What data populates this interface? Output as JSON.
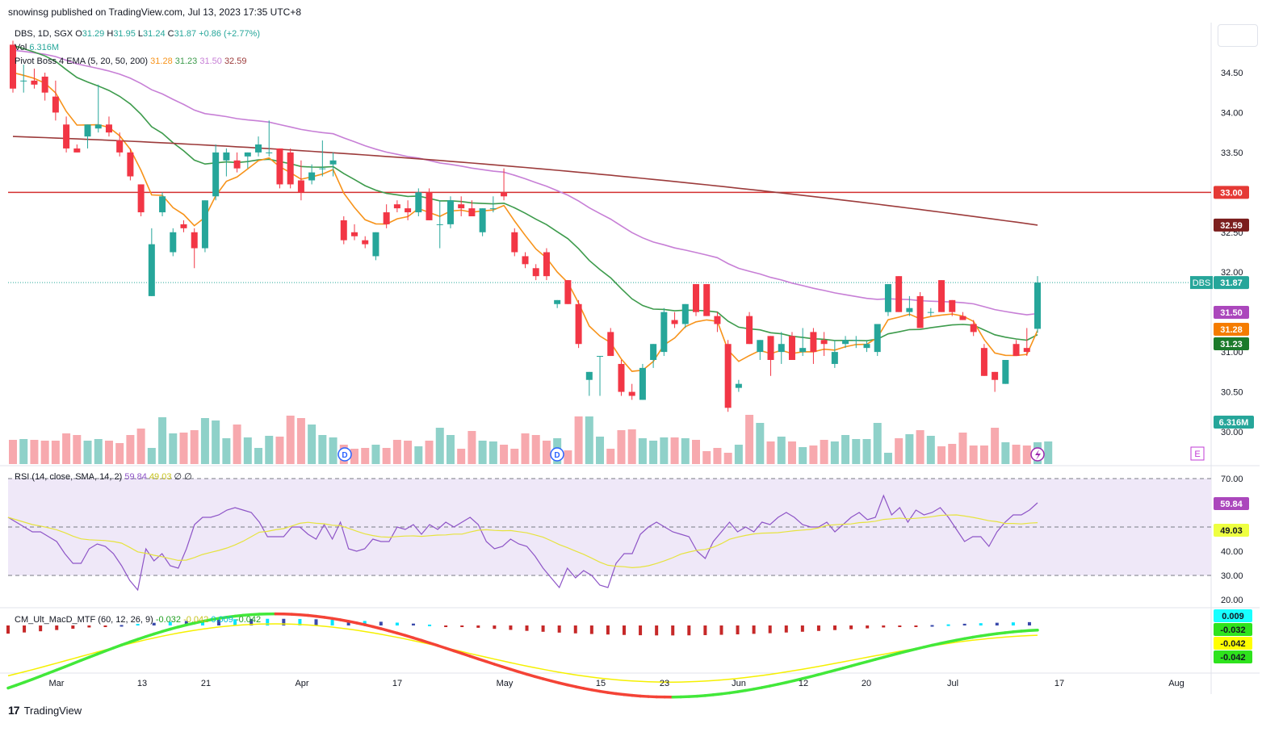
{
  "header": {
    "published": "snowinsg published on TradingView.com, Jul 13, 2023 17:35 UTC+8"
  },
  "footer": {
    "brand": "TradingView",
    "logo_glyph": "17"
  },
  "colors": {
    "up": "#26a69a",
    "down": "#f23645",
    "vol_up": "#8fd1c9",
    "vol_down": "#f7a9ae",
    "ema5": "#f7931a",
    "ema20": "#3d9b4c",
    "ema50": "#c77fd6",
    "ema200": "#9c3b3b",
    "hline": "#d32f2f",
    "rsi": "#8e55c7",
    "rsi_sma": "#e6e33e",
    "rsi_band": "#efe8f8"
  },
  "legend": {
    "main": {
      "symbol": "DBS, 1D, SGX",
      "o": "O31.29",
      "h": "H31.95",
      "l": "L31.24",
      "c": "C31.87",
      "chg": "+0.86 (+2.77%)"
    },
    "vol": {
      "name": "Vol",
      "value": "6.316M"
    },
    "ema": {
      "name": "Pivot Boss 4 EMA (5, 20, 50, 200)",
      "v1": "31.28",
      "v2": "31.23",
      "v3": "31.50",
      "v4": "32.59"
    },
    "rsi": {
      "name": "RSI (14, close, SMA, 14, 2)",
      "v1": "59.84",
      "v2": "49.03",
      "v3": "∅",
      "v4": "∅"
    },
    "macd": {
      "name": "CM_Ult_MacD_MTF (60, 12, 26, 9)",
      "v1": "-0.032",
      "v2": "-0.042",
      "v3": "0.009",
      "v4": "-0.042"
    }
  },
  "price_axis": {
    "ticks": [
      "34.50",
      "34.00",
      "33.50",
      "32.50",
      "32.00",
      "31.00",
      "30.50",
      "30.00"
    ],
    "badges": {
      "hline": "33.00",
      "ema200": "32.59",
      "symbol": "DBS",
      "last": "31.87",
      "ema50": "31.50",
      "ema5": "31.28",
      "ema20": "31.23",
      "vol": "6.316M"
    }
  },
  "rsi_axis": {
    "ticks": [
      "70.00",
      "40.00",
      "30.00",
      "20.00"
    ],
    "badges": [
      "59.84",
      "49.03"
    ]
  },
  "macd_axis": {
    "badges": [
      "0.009",
      "-0.032",
      "-0.042",
      "-0.042"
    ]
  },
  "time_axis": {
    "labels": [
      "Mar",
      "13",
      "21",
      "Apr",
      "17",
      "May",
      "15",
      "23",
      "Jun",
      "12",
      "20",
      "Jul",
      "17",
      "Aug"
    ]
  },
  "markers": {
    "dividend": "D",
    "earnings": "E"
  },
  "chart_data": {
    "type": "candlestick",
    "symbol": "DBS",
    "timeframe": "1D",
    "ylim": [
      29.85,
      34.9
    ],
    "hline": 33.0,
    "candles": [
      {
        "o": 34.85,
        "h": 34.9,
        "l": 34.25,
        "c": 34.3
      },
      {
        "o": 34.4,
        "h": 34.6,
        "l": 34.25,
        "c": 34.4
      },
      {
        "o": 34.4,
        "h": 34.55,
        "l": 34.3,
        "c": 34.35
      },
      {
        "o": 34.45,
        "h": 34.5,
        "l": 34.15,
        "c": 34.25
      },
      {
        "o": 34.2,
        "h": 34.4,
        "l": 33.9,
        "c": 34.0
      },
      {
        "o": 33.85,
        "h": 33.95,
        "l": 33.5,
        "c": 33.55
      },
      {
        "o": 33.55,
        "h": 33.6,
        "l": 33.5,
        "c": 33.5
      },
      {
        "o": 33.7,
        "h": 33.85,
        "l": 33.55,
        "c": 33.85
      },
      {
        "o": 33.8,
        "h": 34.35,
        "l": 33.75,
        "c": 33.85
      },
      {
        "o": 33.85,
        "h": 33.95,
        "l": 33.7,
        "c": 33.75
      },
      {
        "o": 33.65,
        "h": 33.75,
        "l": 33.45,
        "c": 33.5
      },
      {
        "o": 33.5,
        "h": 33.55,
        "l": 33.15,
        "c": 33.2
      },
      {
        "o": 33.1,
        "h": 33.1,
        "l": 32.7,
        "c": 32.75
      },
      {
        "o": 31.7,
        "h": 32.55,
        "l": 31.7,
        "c": 32.35
      },
      {
        "o": 32.75,
        "h": 33.0,
        "l": 32.7,
        "c": 32.95
      },
      {
        "o": 32.25,
        "h": 32.55,
        "l": 32.2,
        "c": 32.5
      },
      {
        "o": 32.6,
        "h": 32.65,
        "l": 32.5,
        "c": 32.55
      },
      {
        "o": 32.5,
        "h": 32.55,
        "l": 32.05,
        "c": 32.3
      },
      {
        "o": 32.3,
        "h": 32.9,
        "l": 32.25,
        "c": 32.9
      },
      {
        "o": 32.95,
        "h": 33.6,
        "l": 32.9,
        "c": 33.5
      },
      {
        "o": 33.4,
        "h": 33.55,
        "l": 33.2,
        "c": 33.5
      },
      {
        "o": 33.4,
        "h": 33.5,
        "l": 33.25,
        "c": 33.3
      },
      {
        "o": 33.45,
        "h": 33.5,
        "l": 33.3,
        "c": 33.5
      },
      {
        "o": 33.5,
        "h": 33.7,
        "l": 33.45,
        "c": 33.6
      },
      {
        "o": 33.5,
        "h": 33.9,
        "l": 33.45,
        "c": 33.5
      },
      {
        "o": 33.55,
        "h": 33.55,
        "l": 33.05,
        "c": 33.1
      },
      {
        "o": 33.5,
        "h": 33.55,
        "l": 33.05,
        "c": 33.1
      },
      {
        "o": 33.15,
        "h": 33.4,
        "l": 32.9,
        "c": 33.0
      },
      {
        "o": 33.15,
        "h": 33.35,
        "l": 33.1,
        "c": 33.25
      },
      {
        "o": 33.3,
        "h": 33.65,
        "l": 33.2,
        "c": 33.3
      },
      {
        "o": 33.35,
        "h": 33.5,
        "l": 33.2,
        "c": 33.4
      },
      {
        "o": 32.65,
        "h": 32.7,
        "l": 32.35,
        "c": 32.4
      },
      {
        "o": 32.5,
        "h": 32.6,
        "l": 32.4,
        "c": 32.45
      },
      {
        "o": 32.4,
        "h": 32.45,
        "l": 32.3,
        "c": 32.35
      },
      {
        "o": 32.2,
        "h": 32.5,
        "l": 32.15,
        "c": 32.5
      },
      {
        "o": 32.75,
        "h": 32.85,
        "l": 32.55,
        "c": 32.6
      },
      {
        "o": 32.85,
        "h": 32.9,
        "l": 32.75,
        "c": 32.8
      },
      {
        "o": 32.8,
        "h": 32.9,
        "l": 32.65,
        "c": 32.75
      },
      {
        "o": 32.75,
        "h": 33.05,
        "l": 32.7,
        "c": 33.0
      },
      {
        "o": 33.0,
        "h": 33.05,
        "l": 32.65,
        "c": 32.65
      },
      {
        "o": 32.6,
        "h": 32.9,
        "l": 32.3,
        "c": 32.6
      },
      {
        "o": 32.6,
        "h": 32.95,
        "l": 32.55,
        "c": 32.9
      },
      {
        "o": 32.85,
        "h": 32.95,
        "l": 32.7,
        "c": 32.8
      },
      {
        "o": 32.8,
        "h": 32.9,
        "l": 32.7,
        "c": 32.7
      },
      {
        "o": 32.5,
        "h": 32.8,
        "l": 32.45,
        "c": 32.8
      },
      {
        "o": 32.8,
        "h": 32.95,
        "l": 32.75,
        "c": 32.8
      },
      {
        "o": 33.0,
        "h": 33.3,
        "l": 32.9,
        "c": 32.95
      },
      {
        "o": 32.5,
        "h": 32.55,
        "l": 32.2,
        "c": 32.25
      },
      {
        "o": 32.2,
        "h": 32.25,
        "l": 32.05,
        "c": 32.1
      },
      {
        "o": 32.05,
        "h": 32.1,
        "l": 31.9,
        "c": 31.95
      },
      {
        "o": 32.25,
        "h": 32.3,
        "l": 31.9,
        "c": 31.95
      },
      {
        "o": 31.6,
        "h": 31.65,
        "l": 31.55,
        "c": 31.65
      },
      {
        "o": 31.9,
        "h": 31.9,
        "l": 31.6,
        "c": 31.6
      },
      {
        "o": 31.6,
        "h": 31.65,
        "l": 31.05,
        "c": 31.1
      },
      {
        "o": 30.65,
        "h": 30.75,
        "l": 30.45,
        "c": 30.75
      },
      {
        "o": 30.95,
        "h": 30.95,
        "l": 30.45,
        "c": 30.95
      },
      {
        "o": 31.25,
        "h": 31.3,
        "l": 30.95,
        "c": 30.95
      },
      {
        "o": 30.85,
        "h": 30.9,
        "l": 30.45,
        "c": 30.5
      },
      {
        "o": 30.5,
        "h": 30.6,
        "l": 30.4,
        "c": 30.45
      },
      {
        "o": 30.4,
        "h": 30.85,
        "l": 30.4,
        "c": 30.8
      },
      {
        "o": 30.9,
        "h": 31.1,
        "l": 30.8,
        "c": 31.1
      },
      {
        "o": 31.0,
        "h": 31.55,
        "l": 30.95,
        "c": 31.5
      },
      {
        "o": 31.4,
        "h": 31.5,
        "l": 31.3,
        "c": 31.35
      },
      {
        "o": 31.35,
        "h": 31.6,
        "l": 31.3,
        "c": 31.6
      },
      {
        "o": 31.85,
        "h": 31.85,
        "l": 31.45,
        "c": 31.5
      },
      {
        "o": 31.85,
        "h": 31.85,
        "l": 31.45,
        "c": 31.45
      },
      {
        "o": 31.45,
        "h": 31.5,
        "l": 31.25,
        "c": 31.35
      },
      {
        "o": 31.1,
        "h": 31.15,
        "l": 30.25,
        "c": 30.3
      },
      {
        "o": 30.55,
        "h": 30.65,
        "l": 30.5,
        "c": 30.6
      },
      {
        "o": 31.45,
        "h": 31.5,
        "l": 31.1,
        "c": 31.1
      },
      {
        "o": 31.0,
        "h": 31.15,
        "l": 30.9,
        "c": 31.15
      },
      {
        "o": 31.2,
        "h": 31.2,
        "l": 30.7,
        "c": 30.9
      },
      {
        "o": 31.0,
        "h": 31.25,
        "l": 30.85,
        "c": 31.1
      },
      {
        "o": 31.2,
        "h": 31.25,
        "l": 30.9,
        "c": 30.9
      },
      {
        "o": 31.0,
        "h": 31.3,
        "l": 30.95,
        "c": 31.05
      },
      {
        "o": 31.25,
        "h": 31.3,
        "l": 30.85,
        "c": 31.0
      },
      {
        "o": 31.15,
        "h": 31.25,
        "l": 30.95,
        "c": 31.1
      },
      {
        "o": 30.85,
        "h": 31.15,
        "l": 30.8,
        "c": 31.0
      },
      {
        "o": 31.1,
        "h": 31.2,
        "l": 31.05,
        "c": 31.15
      },
      {
        "o": 31.15,
        "h": 31.2,
        "l": 31.05,
        "c": 31.15
      },
      {
        "o": 31.05,
        "h": 31.15,
        "l": 31.0,
        "c": 31.1
      },
      {
        "o": 31.0,
        "h": 31.35,
        "l": 30.95,
        "c": 31.35
      },
      {
        "o": 31.5,
        "h": 31.85,
        "l": 31.45,
        "c": 31.85
      },
      {
        "o": 31.95,
        "h": 31.95,
        "l": 31.5,
        "c": 31.5
      },
      {
        "o": 31.5,
        "h": 31.7,
        "l": 31.45,
        "c": 31.55
      },
      {
        "o": 31.7,
        "h": 31.75,
        "l": 31.3,
        "c": 31.3
      },
      {
        "o": 31.5,
        "h": 31.55,
        "l": 31.45,
        "c": 31.5
      },
      {
        "o": 31.9,
        "h": 31.9,
        "l": 31.5,
        "c": 31.5
      },
      {
        "o": 31.65,
        "h": 31.65,
        "l": 31.45,
        "c": 31.5
      },
      {
        "o": 31.45,
        "h": 31.5,
        "l": 31.4,
        "c": 31.4
      },
      {
        "o": 31.35,
        "h": 31.4,
        "l": 31.2,
        "c": 31.25
      },
      {
        "o": 31.05,
        "h": 31.1,
        "l": 30.7,
        "c": 30.7
      },
      {
        "o": 30.75,
        "h": 30.75,
        "l": 30.5,
        "c": 30.65
      },
      {
        "o": 30.6,
        "h": 30.9,
        "l": 30.6,
        "c": 30.9
      },
      {
        "o": 31.1,
        "h": 31.15,
        "l": 30.95,
        "c": 30.95
      },
      {
        "o": 31.05,
        "h": 31.3,
        "l": 30.95,
        "c": 31.0
      },
      {
        "o": 31.29,
        "h": 31.95,
        "l": 31.24,
        "c": 31.87
      }
    ],
    "volume": [
      30,
      31,
      30,
      29,
      29,
      38,
      36,
      29,
      31,
      29,
      26,
      36,
      44,
      20,
      58,
      38,
      39,
      42,
      57,
      54,
      32,
      49,
      33,
      20,
      35,
      34,
      60,
      57,
      49,
      36,
      33,
      24,
      19,
      20,
      24,
      20,
      30,
      29,
      22,
      29,
      45,
      36,
      19,
      41,
      29,
      28,
      24,
      19,
      38,
      36,
      29,
      32,
      17,
      59,
      59,
      34,
      19,
      42,
      43,
      32,
      29,
      33,
      33,
      32,
      30,
      16,
      20,
      14,
      24,
      61,
      51,
      28,
      34,
      28,
      21,
      23,
      30,
      28,
      36,
      31,
      31,
      51,
      14,
      32,
      37,
      42,
      35,
      22,
      25,
      39,
      23,
      23,
      45,
      27,
      24,
      23,
      27,
      28
    ],
    "ema5": [],
    "ema20": [],
    "ema50": [],
    "ema200_range": [
      33.7,
      32.59
    ],
    "rsi": [
      54,
      52,
      50,
      48,
      48,
      46,
      44,
      39,
      35,
      35,
      41,
      43,
      42,
      39,
      34,
      28,
      24,
      41,
      36,
      39,
      34,
      33,
      41,
      51,
      54,
      54,
      55,
      57,
      58,
      57,
      56,
      52,
      46,
      46,
      46,
      50,
      50,
      47,
      45,
      51,
      45,
      52,
      41,
      40,
      41,
      45,
      44,
      44,
      50,
      49,
      51,
      47,
      51,
      49,
      52,
      50,
      52,
      54,
      51,
      44,
      41,
      42,
      45,
      43,
      42,
      38,
      33,
      29,
      25,
      33,
      29,
      32,
      30,
      26,
      25,
      35,
      39,
      39,
      47,
      50,
      52,
      50,
      48,
      47,
      46,
      40,
      37,
      44,
      48,
      52,
      48,
      50,
      48,
      52,
      51,
      54,
      56,
      54,
      51,
      50,
      50,
      52,
      48,
      51,
      54,
      56,
      53,
      54,
      63,
      55,
      58,
      52,
      57,
      55,
      56,
      58,
      54,
      49,
      44,
      46,
      46,
      42,
      48,
      52,
      55,
      55,
      57,
      60
    ],
    "rsi_sma_range": [
      50.6,
      49.03
    ],
    "rsi_levels": {
      "upper": 70,
      "mid": 50,
      "lower": 30
    },
    "macd_value": -0.032,
    "macd_signal": -0.042,
    "macd_hist_last": 0.009
  }
}
